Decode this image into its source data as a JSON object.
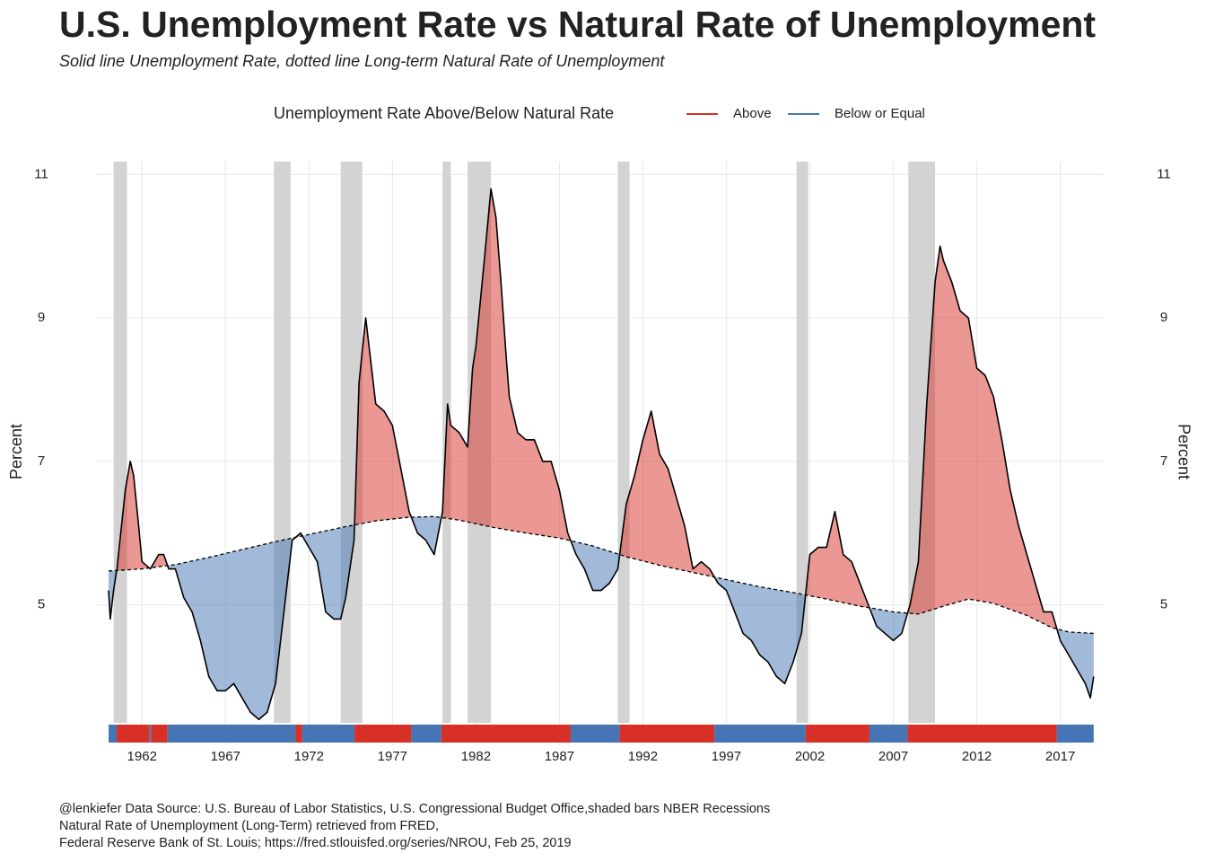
{
  "chart_data": {
    "type": "line",
    "title": "U.S. Unemployment Rate vs Natural Rate of Unemployment",
    "subtitle": "Solid line Unemployment Rate, dotted line Long-term Natural Rate of Unemployment",
    "y_label": "Percent",
    "y2_label": "Percent",
    "legend": {
      "title": "Unemployment Rate Above/Below Natural Rate",
      "entries": [
        {
          "name": "Above",
          "color": "#d73027"
        },
        {
          "name": "Below or Equal",
          "color": "#4575b4"
        }
      ]
    },
    "series": [
      {
        "color": "#000000",
        "dash": false,
        "x": [
          1960.0,
          1960.1,
          1960.3,
          1960.5,
          1961.0,
          1961.3,
          1961.5,
          1961.8,
          1962.0,
          1962.5,
          1963.0,
          1963.3,
          1963.6,
          1964.0,
          1964.5,
          1965.0,
          1965.5,
          1966.0,
          1966.5,
          1967.0,
          1967.5,
          1968.0,
          1968.5,
          1969.0,
          1969.5,
          1970.0,
          1970.5,
          1971.0,
          1971.5,
          1972.0,
          1972.5,
          1973.0,
          1973.5,
          1973.9,
          1974.2,
          1974.7,
          1975.0,
          1975.4,
          1975.7,
          1976.0,
          1976.5,
          1977.0,
          1977.5,
          1978.0,
          1978.5,
          1979.0,
          1979.5,
          1980.0,
          1980.3,
          1980.5,
          1981.0,
          1981.5,
          1981.8,
          1982.0,
          1982.5,
          1982.9,
          1983.2,
          1983.5,
          1983.8,
          1984.0,
          1984.5,
          1985.0,
          1985.5,
          1986.0,
          1986.5,
          1987.0,
          1987.5,
          1988.0,
          1988.5,
          1989.0,
          1989.5,
          1990.0,
          1990.5,
          1991.0,
          1991.5,
          1992.0,
          1992.5,
          1993.0,
          1993.5,
          1994.0,
          1994.5,
          1995.0,
          1995.5,
          1996.0,
          1996.5,
          1997.0,
          1997.5,
          1998.0,
          1998.5,
          1999.0,
          1999.5,
          2000.0,
          2000.5,
          2001.0,
          2001.5,
          2002.0,
          2002.5,
          2003.0,
          2003.5,
          2004.0,
          2004.5,
          2005.0,
          2005.5,
          2006.0,
          2006.5,
          2007.0,
          2007.5,
          2008.0,
          2008.5,
          2009.0,
          2009.5,
          2009.8,
          2010.0,
          2010.5,
          2011.0,
          2011.5,
          2012.0,
          2012.5,
          2013.0,
          2013.5,
          2014.0,
          2014.5,
          2015.0,
          2015.5,
          2016.0,
          2016.5,
          2017.0,
          2017.5,
          2018.0,
          2018.5,
          2018.8,
          2019.0
        ],
        "values": [
          5.2,
          4.8,
          5.2,
          5.5,
          6.6,
          7.0,
          6.8,
          6.1,
          5.6,
          5.5,
          5.7,
          5.7,
          5.5,
          5.5,
          5.1,
          4.9,
          4.5,
          4.0,
          3.8,
          3.8,
          3.9,
          3.7,
          3.5,
          3.4,
          3.5,
          3.9,
          4.9,
          5.9,
          6.0,
          5.8,
          5.6,
          4.9,
          4.8,
          4.8,
          5.1,
          5.9,
          8.1,
          9.0,
          8.4,
          7.8,
          7.7,
          7.5,
          6.9,
          6.3,
          6.0,
          5.9,
          5.7,
          6.3,
          7.8,
          7.5,
          7.4,
          7.2,
          8.3,
          8.6,
          9.8,
          10.8,
          10.4,
          9.5,
          8.5,
          7.9,
          7.4,
          7.3,
          7.3,
          7.0,
          7.0,
          6.6,
          6.0,
          5.7,
          5.5,
          5.2,
          5.2,
          5.3,
          5.5,
          6.4,
          6.8,
          7.3,
          7.7,
          7.1,
          6.9,
          6.5,
          6.1,
          5.5,
          5.6,
          5.5,
          5.3,
          5.2,
          4.9,
          4.6,
          4.5,
          4.3,
          4.2,
          4.0,
          3.9,
          4.2,
          4.6,
          5.7,
          5.8,
          5.8,
          6.3,
          5.7,
          5.6,
          5.3,
          5.0,
          4.7,
          4.6,
          4.5,
          4.6,
          5.0,
          5.6,
          7.8,
          9.5,
          10.0,
          9.8,
          9.5,
          9.1,
          9.0,
          8.3,
          8.2,
          7.9,
          7.3,
          6.6,
          6.1,
          5.7,
          5.3,
          4.9,
          4.9,
          4.5,
          4.3,
          4.1,
          3.9,
          3.7,
          4.0
        ]
      },
      {
        "color": "#000000",
        "dash": true,
        "x": [
          1960,
          1962,
          1964,
          1966,
          1968,
          1970,
          1972,
          1974,
          1976,
          1978,
          1979.5,
          1981,
          1983,
          1985,
          1987,
          1989,
          1991,
          1993,
          1995,
          1997,
          1999,
          2001,
          2003,
          2005,
          2007,
          2008.5,
          2010,
          2011.5,
          2013,
          2015,
          2016.5,
          2017.5,
          2019
        ],
        "values": [
          5.47,
          5.5,
          5.56,
          5.66,
          5.77,
          5.88,
          5.98,
          6.08,
          6.17,
          6.22,
          6.23,
          6.18,
          6.08,
          6.0,
          5.93,
          5.82,
          5.67,
          5.55,
          5.45,
          5.35,
          5.25,
          5.17,
          5.08,
          4.98,
          4.9,
          4.87,
          4.98,
          5.08,
          5.02,
          4.85,
          4.68,
          4.62,
          4.6
        ]
      }
    ],
    "recessions": [
      [
        1960.3,
        1961.1
      ],
      [
        1969.9,
        1970.9
      ],
      [
        1973.9,
        1975.2
      ],
      [
        1980.0,
        1980.5
      ],
      [
        1981.5,
        1982.9
      ],
      [
        1990.5,
        1991.2
      ],
      [
        2001.2,
        2001.9
      ],
      [
        2007.9,
        2009.5
      ]
    ],
    "recession_color": "#d3d3d3",
    "xlim": [
      1959.3,
      2019.6
    ],
    "xticks": [
      1962,
      1967,
      1972,
      1977,
      1982,
      1987,
      1992,
      1997,
      2002,
      2007,
      2012,
      2017
    ],
    "ylim": [
      3.04,
      11.18
    ],
    "yticks": [
      5,
      7,
      9,
      11
    ],
    "y2lim": [
      3.04,
      11.18
    ],
    "y2ticks": [
      5,
      7,
      9,
      11
    ],
    "grid": true,
    "caption": [
      "@lenkiefer Data Source: U.S. Bureau of Labor Statistics, U.S. Congressional Budget Office,shaded bars NBER Recessions",
      "Natural Rate of Unemployment (Long-Term) retrieved from FRED,",
      "Federal Reserve Bank of St. Louis; https://fred.stlouisfed.org/series/NROU, Feb 25, 2019"
    ]
  }
}
